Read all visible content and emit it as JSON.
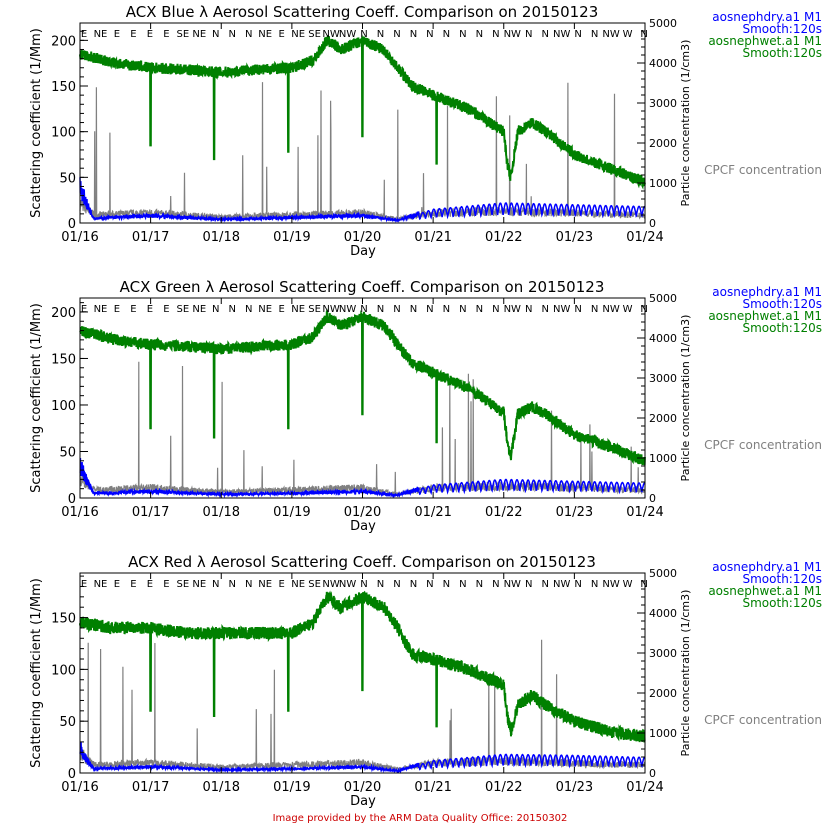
{
  "footer": "Image provided by the ARM Data Quality Office: 20150302",
  "colors": {
    "dry": "#0000ff",
    "wet": "#008000",
    "cpcf": "#808080",
    "footer": "#cc0000"
  },
  "chart_data": [
    {
      "type": "line",
      "title": "ACX Blue λ Aerosol Scattering Coeff. Comparison on 20150123",
      "xlabel": "Day",
      "ylabel": "Scattering coefficient (1/Mm)",
      "y2label": "Particle concentration (1/cm3)",
      "ylim": [
        0,
        219
      ],
      "y2lim": [
        0,
        5000
      ],
      "yticks": [
        0,
        50,
        100,
        150,
        200
      ],
      "y2ticks": [
        "0",
        "1000",
        "2000",
        "3000",
        "4000",
        "5000"
      ],
      "xlim": [
        16,
        24
      ],
      "xticks": [
        "01/16",
        "01/17",
        "01/18",
        "01/19",
        "01/20",
        "01/21",
        "01/22",
        "01/23",
        "01/24"
      ],
      "legend": [
        "aosnephdry.a1 M1",
        "Smooth:120s",
        "aosnephwet.a1 M1",
        "Smooth:120s",
        "CPCF concentration"
      ],
      "wind_dirs": [
        "E",
        "NE",
        "E",
        "E",
        "E",
        "E",
        "SE",
        "NE",
        "N",
        "N",
        "N",
        "NE",
        "E",
        "NE",
        "SE",
        "NW",
        "NW",
        "N",
        "N",
        "N",
        "N",
        "N",
        "N",
        "N",
        "N",
        "N",
        "NW",
        "N",
        "N",
        "NW",
        "N",
        "N",
        "NW",
        "W",
        "N"
      ],
      "series": [
        {
          "name": "aosnephwet.a1 M1",
          "x": [
            16,
            16.5,
            17,
            17.5,
            18,
            18.5,
            19,
            19.3,
            19.5,
            19.7,
            20,
            20.3,
            20.5,
            20.7,
            21,
            21.5,
            22,
            22.05,
            22.1,
            22.2,
            22.4,
            22.6,
            23,
            23.5,
            24
          ],
          "y": [
            185,
            175,
            170,
            168,
            165,
            168,
            170,
            178,
            200,
            190,
            200,
            190,
            170,
            150,
            140,
            125,
            100,
            65,
            50,
            100,
            110,
            100,
            75,
            60,
            45
          ],
          "dips": [
            [
              17,
              85
            ],
            [
              17.9,
              70
            ],
            [
              18.95,
              78
            ],
            [
              20.0,
              95
            ],
            [
              21.05,
              65
            ]
          ]
        },
        {
          "name": "aosnephdry.a1 M1",
          "x": [
            16,
            16.1,
            16.2,
            17,
            18,
            19,
            20,
            20.5,
            21,
            22,
            23,
            24
          ],
          "y": [
            40,
            20,
            5,
            8,
            4,
            6,
            8,
            3,
            15,
            22,
            20,
            18
          ]
        },
        {
          "name": "CPCF concentration",
          "x": [
            16,
            16.2,
            17,
            18,
            19,
            20,
            20.5,
            21,
            22,
            23,
            24
          ],
          "y": [
            500,
            200,
            250,
            150,
            200,
            250,
            100,
            250,
            300,
            250,
            200
          ]
        }
      ]
    },
    {
      "type": "line",
      "title": "ACX Green λ Aerosol Scattering Coeff. Comparison on 20150123",
      "xlabel": "Day",
      "ylabel": "Scattering coefficient (1/Mm)",
      "y2label": "Particle concentration (1/cm3)",
      "ylim": [
        0,
        215
      ],
      "y2lim": [
        0,
        5000
      ],
      "yticks": [
        0,
        50,
        100,
        150,
        200
      ],
      "y2ticks": [
        "0",
        "1000",
        "2000",
        "3000",
        "4000",
        "5000"
      ],
      "xlim": [
        16,
        24
      ],
      "xticks": [
        "01/16",
        "01/17",
        "01/18",
        "01/19",
        "01/20",
        "01/21",
        "01/22",
        "01/23",
        "01/24"
      ],
      "legend": [
        "aosnephdry.a1 M1",
        "Smooth:120s",
        "aosnephwet.a1 M1",
        "Smooth:120s",
        "CPCF concentration"
      ],
      "wind_dirs": [
        "E",
        "NE",
        "E",
        "E",
        "E",
        "E",
        "SE",
        "NE",
        "N",
        "N",
        "N",
        "NE",
        "E",
        "NE",
        "SE",
        "NW",
        "NW",
        "N",
        "N",
        "N",
        "N",
        "N",
        "N",
        "N",
        "N",
        "N",
        "NW",
        "N",
        "N",
        "NW",
        "N",
        "N",
        "NW",
        "W",
        "N"
      ],
      "series": [
        {
          "name": "aosnephwet.a1 M1",
          "x": [
            16,
            16.5,
            17,
            17.5,
            18,
            18.5,
            19,
            19.3,
            19.5,
            19.7,
            20,
            20.3,
            20.5,
            20.7,
            21,
            21.5,
            22,
            22.05,
            22.1,
            22.2,
            22.4,
            22.6,
            23,
            23.5,
            24
          ],
          "y": [
            180,
            170,
            165,
            163,
            160,
            163,
            165,
            173,
            195,
            185,
            195,
            185,
            165,
            145,
            135,
            118,
            92,
            60,
            45,
            90,
            98,
            90,
            68,
            55,
            40
          ],
          "dips": [
            [
              17,
              75
            ],
            [
              17.9,
              65
            ],
            [
              18.95,
              75
            ],
            [
              20.0,
              90
            ],
            [
              21.05,
              60
            ]
          ]
        },
        {
          "name": "aosnephdry.a1 M1",
          "x": [
            16,
            16.1,
            16.2,
            17,
            18,
            19,
            20,
            20.5,
            21,
            22,
            23,
            24
          ],
          "y": [
            35,
            18,
            5,
            7,
            4,
            5,
            7,
            3,
            14,
            20,
            18,
            16
          ]
        },
        {
          "name": "CPCF concentration",
          "x": [
            16,
            16.2,
            17,
            18,
            19,
            20,
            20.5,
            21,
            22,
            23,
            24
          ],
          "y": [
            500,
            200,
            250,
            150,
            200,
            250,
            100,
            250,
            300,
            250,
            200
          ]
        }
      ]
    },
    {
      "type": "line",
      "title": "ACX Red λ Aerosol Scattering Coeff. Comparison on 20150123",
      "xlabel": "Day",
      "ylabel": "Scattering coefficient (1/Mm)",
      "y2label": "Particle concentration (1/cm3)",
      "ylim": [
        0,
        193
      ],
      "y2lim": [
        0,
        5000
      ],
      "yticks": [
        0,
        50,
        100,
        150
      ],
      "y2ticks": [
        "0",
        "1000",
        "2000",
        "3000",
        "4000",
        "5000"
      ],
      "xlim": [
        16,
        24
      ],
      "xticks": [
        "01/16",
        "01/17",
        "01/18",
        "01/19",
        "01/20",
        "01/21",
        "01/22",
        "01/23",
        "01/24"
      ],
      "legend": [
        "aosnephdry.a1 M1",
        "Smooth:120s",
        "aosnephwet.a1 M1",
        "Smooth:120s",
        "CPCF concentration"
      ],
      "wind_dirs": [
        "E",
        "NE",
        "E",
        "E",
        "E",
        "E",
        "SE",
        "NE",
        "N",
        "N",
        "N",
        "NE",
        "E",
        "NE",
        "SE",
        "NW",
        "NW",
        "N",
        "N",
        "N",
        "N",
        "N",
        "N",
        "N",
        "N",
        "N",
        "NW",
        "N",
        "N",
        "NW",
        "N",
        "N",
        "NW",
        "W",
        "N"
      ],
      "series": [
        {
          "name": "aosnephwet.a1 M1",
          "x": [
            16,
            16.5,
            17,
            17.5,
            18,
            18.5,
            19,
            19.3,
            19.5,
            19.7,
            20,
            20.3,
            20.5,
            20.7,
            21,
            21.5,
            22,
            22.05,
            22.1,
            22.2,
            22.4,
            22.6,
            23,
            23.5,
            24
          ],
          "y": [
            145,
            140,
            140,
            135,
            135,
            135,
            135,
            145,
            170,
            160,
            170,
            160,
            140,
            115,
            110,
            100,
            85,
            55,
            40,
            65,
            75,
            65,
            50,
            40,
            35
          ],
          "dips": [
            [
              17,
              60
            ],
            [
              17.9,
              55
            ],
            [
              18.95,
              60
            ],
            [
              20.0,
              80
            ],
            [
              21.05,
              45
            ]
          ]
        },
        {
          "name": "aosnephdry.a1 M1",
          "x": [
            16,
            16.1,
            16.2,
            17,
            18,
            19,
            20,
            20.5,
            21,
            22,
            23,
            24
          ],
          "y": [
            25,
            12,
            4,
            6,
            3,
            4,
            6,
            2,
            12,
            18,
            17,
            15
          ]
        },
        {
          "name": "CPCF concentration",
          "x": [
            16,
            16.2,
            17,
            18,
            19,
            20,
            20.5,
            21,
            22,
            23,
            24
          ],
          "y": [
            500,
            200,
            250,
            150,
            200,
            250,
            100,
            250,
            300,
            250,
            200
          ]
        }
      ]
    }
  ]
}
